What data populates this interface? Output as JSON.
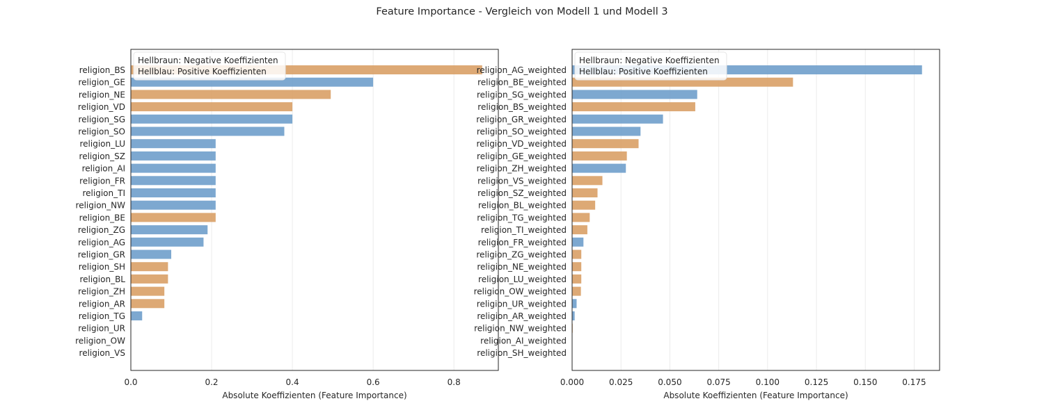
{
  "figure_title": "Feature Importance - Vergleich von Modell 1 und Modell 3",
  "colors": {
    "negative": "#D9A066",
    "positive": "#6F9FCB",
    "axis": "#262626",
    "grid": "#EBEBEB"
  },
  "chart_data": [
    {
      "type": "bar",
      "orientation": "horizontal",
      "xlabel": "Absolute Koeffizienten (Feature Importance)",
      "xlim": [
        0,
        0.91
      ],
      "xticks": [
        "0.0",
        "0.2",
        "0.4",
        "0.6",
        "0.8"
      ],
      "grid": true,
      "legend": {
        "placement": "top-left",
        "entries": [
          "Hellbraun: Negative Koeffizienten",
          "Hellblau: Positive Koeffizienten"
        ]
      },
      "categories": [
        "religion_BS",
        "religion_GE",
        "religion_NE",
        "religion_VD",
        "religion_SG",
        "religion_SO",
        "religion_LU",
        "religion_SZ",
        "religion_AI",
        "religion_FR",
        "religion_TI",
        "religion_NW",
        "religion_BE",
        "religion_ZG",
        "religion_AG",
        "religion_GR",
        "religion_SH",
        "religion_BL",
        "religion_ZH",
        "religion_AR",
        "religion_TG",
        "religion_UR",
        "religion_OW",
        "religion_VS"
      ],
      "values": [
        0.87,
        0.6,
        0.495,
        0.4,
        0.4,
        0.38,
        0.21,
        0.21,
        0.21,
        0.21,
        0.21,
        0.21,
        0.21,
        0.19,
        0.18,
        0.1,
        0.092,
        0.092,
        0.083,
        0.083,
        0.028,
        0,
        0,
        0
      ],
      "signs": [
        "negative",
        "positive",
        "negative",
        "negative",
        "positive",
        "positive",
        "positive",
        "positive",
        "positive",
        "positive",
        "positive",
        "positive",
        "negative",
        "positive",
        "positive",
        "positive",
        "negative",
        "negative",
        "negative",
        "negative",
        "positive",
        "positive",
        "positive",
        "positive"
      ]
    },
    {
      "type": "bar",
      "orientation": "horizontal",
      "xlabel": "Absolute Koeffizienten (Feature Importance)",
      "xlim": [
        0,
        0.188
      ],
      "xticks": [
        "0.000",
        "0.025",
        "0.050",
        "0.075",
        "0.100",
        "0.125",
        "0.150",
        "0.175"
      ],
      "grid": true,
      "legend": {
        "placement": "top-left",
        "entries": [
          "Hellbraun: Negative Koeffizienten",
          "Hellblau: Positive Koeffizienten"
        ]
      },
      "categories": [
        "religion_AG_weighted",
        "religion_BE_weighted",
        "religion_SG_weighted",
        "religion_BS_weighted",
        "religion_GR_weighted",
        "religion_SO_weighted",
        "religion_VD_weighted",
        "religion_GE_weighted",
        "religion_ZH_weighted",
        "religion_VS_weighted",
        "religion_SZ_weighted",
        "religion_BL_weighted",
        "religion_TG_weighted",
        "religion_TI_weighted",
        "religion_FR_weighted",
        "religion_ZG_weighted",
        "religion_NE_weighted",
        "religion_LU_weighted",
        "religion_OW_weighted",
        "religion_UR_weighted",
        "religion_AR_weighted",
        "religion_NW_weighted",
        "religion_AI_weighted",
        "religion_SH_weighted"
      ],
      "values": [
        0.179,
        0.113,
        0.064,
        0.063,
        0.0465,
        0.035,
        0.034,
        0.028,
        0.0275,
        0.0155,
        0.013,
        0.0118,
        0.009,
        0.0078,
        0.0058,
        0.0047,
        0.0047,
        0.0047,
        0.0045,
        0.0023,
        0.0013,
        0.0003,
        0,
        0
      ],
      "signs": [
        "positive",
        "negative",
        "positive",
        "negative",
        "positive",
        "positive",
        "negative",
        "negative",
        "positive",
        "negative",
        "negative",
        "negative",
        "negative",
        "negative",
        "positive",
        "negative",
        "negative",
        "negative",
        "negative",
        "positive",
        "positive",
        "negative",
        "positive",
        "positive"
      ]
    }
  ]
}
